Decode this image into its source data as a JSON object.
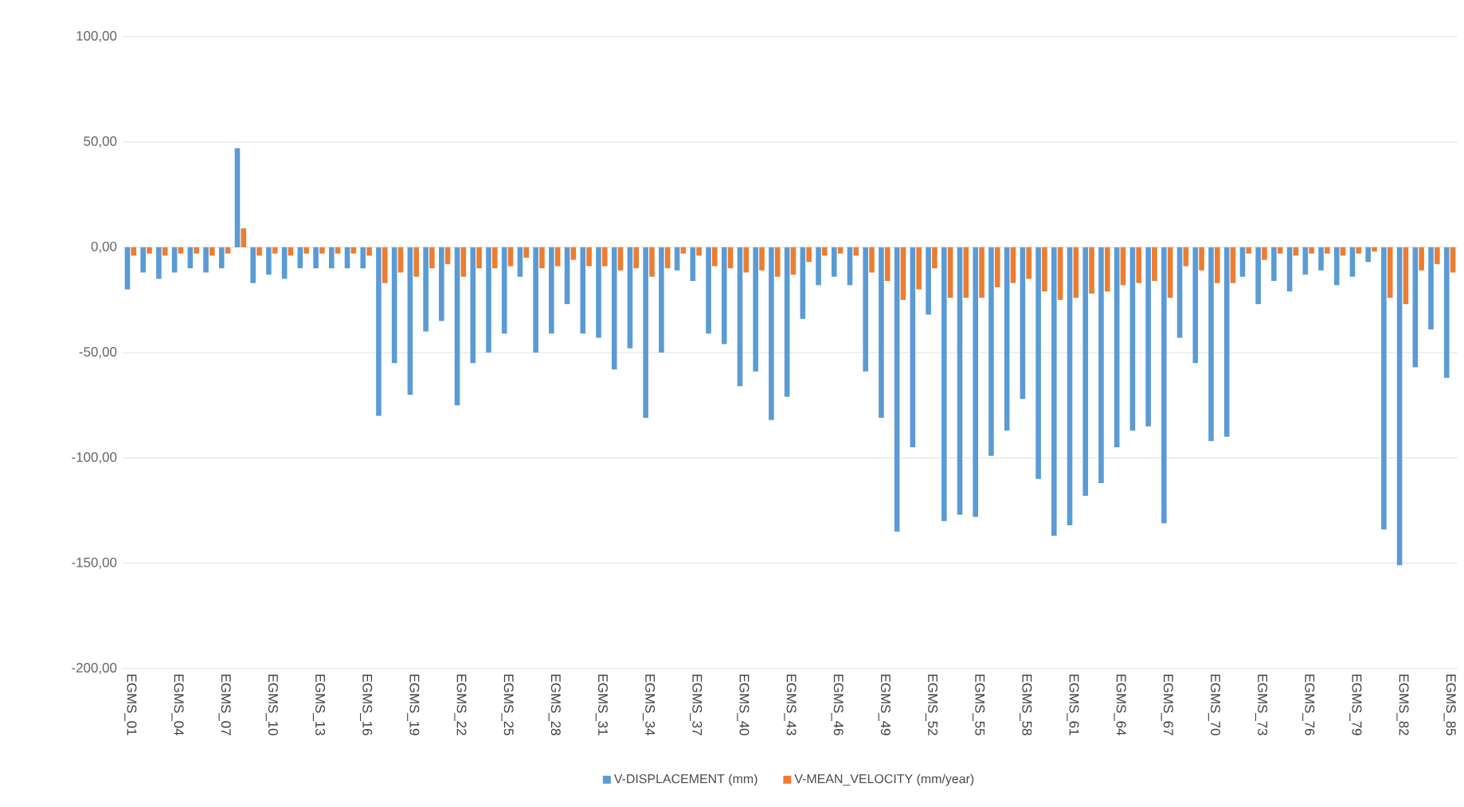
{
  "chart_data": {
    "type": "bar",
    "categories": [
      "EGMS_01",
      null,
      null,
      "EGMS_04",
      null,
      null,
      "EGMS_07",
      null,
      null,
      "EGMS_10",
      null,
      null,
      "EGMS_13",
      null,
      null,
      "EGMS_16",
      null,
      null,
      "EGMS_19",
      null,
      null,
      "EGMS_22",
      null,
      null,
      "EGMS_25",
      null,
      null,
      "EGMS_28",
      null,
      null,
      "EGMS_31",
      null,
      null,
      "EGMS_34",
      null,
      null,
      "EGMS_37",
      null,
      null,
      "EGMS_40",
      null,
      null,
      "EGMS_43",
      null,
      null,
      "EGMS_46",
      null,
      null,
      "EGMS_49",
      null,
      null,
      "EGMS_52",
      null,
      null,
      "EGMS_55",
      null,
      null,
      "EGMS_58",
      null,
      null,
      "EGMS_61",
      null,
      null,
      "EGMS_64",
      null,
      null,
      "EGMS_67",
      null,
      null,
      "EGMS_70",
      null,
      null,
      "EGMS_73",
      null,
      null,
      "EGMS_76",
      null,
      null,
      "EGMS_79",
      null,
      null,
      "EGMS_82",
      null,
      null,
      "EGMS_85"
    ],
    "series": [
      {
        "name": "V-DISPLACEMENT (mm)",
        "color": "#5b9bd5",
        "values": [
          -20,
          -12,
          -15,
          -12,
          -10,
          -12,
          -10,
          47,
          -17,
          -13,
          -15,
          -10,
          -10,
          -10,
          -10,
          -10,
          -80,
          -55,
          -70,
          -40,
          -35,
          -75,
          -55,
          -50,
          -41,
          -14,
          -50,
          -41,
          -27,
          -41,
          -43,
          -58,
          -48,
          -81,
          -50,
          -11,
          -16,
          -41,
          -46,
          -66,
          -59,
          -82,
          -71,
          -34,
          -18,
          -14,
          -18,
          -59,
          -81,
          -135,
          -95,
          -32,
          -130,
          -127,
          -128,
          -99,
          -87,
          -72,
          -110,
          -137,
          -132,
          -118,
          -112,
          -95,
          -87,
          -85,
          -131,
          -43,
          -55,
          -92,
          -90,
          -14,
          -27,
          -16,
          -21,
          -13,
          -11,
          -18,
          -14,
          -7,
          -134,
          -151,
          -57,
          -39,
          -62
        ]
      },
      {
        "name": "V-MEAN_VELOCITY (mm/year)",
        "color": "#ed7d31",
        "values": [
          -4,
          -3,
          -4,
          -3,
          -3,
          -4,
          -3,
          9,
          -4,
          -3,
          -4,
          -3,
          -3,
          -3,
          -3,
          -4,
          -17,
          -12,
          -14,
          -10,
          -8,
          -14,
          -10,
          -10,
          -9,
          -5,
          -10,
          -9,
          -6,
          -9,
          -9,
          -11,
          -10,
          -14,
          -10,
          -3,
          -4,
          -9,
          -10,
          -12,
          -11,
          -14,
          -13,
          -7,
          -4,
          -3,
          -4,
          -12,
          -16,
          -25,
          -20,
          -10,
          -24,
          -24,
          -24,
          -19,
          -17,
          -15,
          -21,
          -25,
          -24,
          -22,
          -21,
          -18,
          -17,
          -16,
          -24,
          -9,
          -11,
          -17,
          -17,
          -3,
          -6,
          -3,
          -4,
          -3,
          -3,
          -4,
          -3,
          -2,
          -24,
          -27,
          -11,
          -8,
          -12
        ]
      }
    ],
    "ylim": [
      -200,
      100
    ],
    "yticks": [
      {
        "value": -200,
        "label": "-200,00"
      },
      {
        "value": -150,
        "label": "-150,00"
      },
      {
        "value": -100,
        "label": "-100,00"
      },
      {
        "value": -50,
        "label": "-50,00"
      },
      {
        "value": 0,
        "label": "0,00"
      },
      {
        "value": 50,
        "label": "50,00"
      },
      {
        "value": 100,
        "label": "100,00"
      }
    ],
    "grid": "y",
    "legend": "bottom"
  }
}
